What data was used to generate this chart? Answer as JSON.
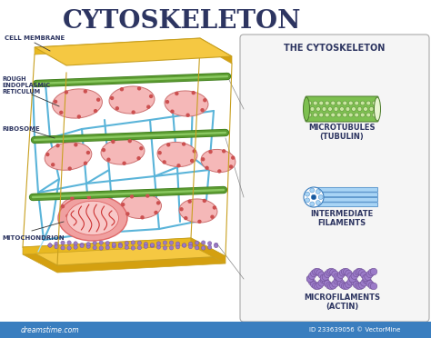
{
  "title": "CYTOSKELETON",
  "title_color": "#2d3561",
  "title_fontsize": 20,
  "bg_color": "#ffffff",
  "bottom_bar_color": "#3a7ebf",
  "bottom_bar_text": "ID 233639056 © VectorMine",
  "watermark": "dreamstime.com",
  "cell_membrane_color": "#f5c842",
  "cell_membrane_edge": "#c8a020",
  "cell_membrane_label": "CELL MEMBRANE",
  "er_label": "ROUGH\nENDOPLASMIC\nRETICULUM",
  "ribosome_label": "RIBOSOME",
  "mitochondrion_label": "MITOCHONDRION",
  "legend_title": "THE CYTOSKELETON",
  "microtubule_label": "MICROTUBULES\n(TUBULIN)",
  "intermediate_label": "INTERMEDIATE\nFILAMENTS",
  "microfilament_label": "MICROFILAMENTS\n(ACTIN)",
  "microtubule_color": "#7dc050",
  "microtubule_inner": "#c8e6a0",
  "microtubule_dark": "#4a7a2a",
  "intermediate_color": "#3a7ebf",
  "intermediate_light": "#a8d4f5",
  "intermediate_dark": "#1a5a9f",
  "microfilament_color": "#9b7bc8",
  "microfilament_dark": "#6a4a90",
  "er_color": "#f5b8b8",
  "er_border": "#cc7070",
  "er_fill": "#f0c0c0",
  "ribosome_color": "#cc5050",
  "mito_outer": "#dd6666",
  "mito_inner": "#f0a0a0",
  "mito_light": "#f8c8c8",
  "mito_cristae": "#cc3333",
  "network_color": "#5ab4d9",
  "network_light": "#a8ddf0",
  "green_tube_color": "#5a9a30",
  "green_tube_light": "#8ac860",
  "green_tube_dark": "#3a7a18",
  "purple_tube_color": "#9b7bc8",
  "label_fontsize": 5.0,
  "legend_fontsize": 6.5,
  "label_line_color": "#333333"
}
